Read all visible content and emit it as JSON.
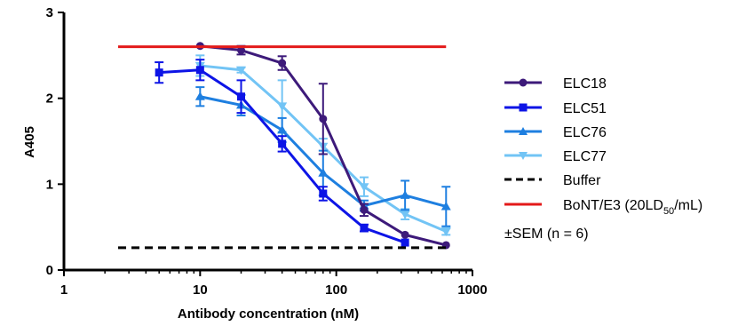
{
  "chart_data": {
    "type": "line",
    "xlabel": "Antibody concentration (nM)",
    "ylabel": "A405",
    "xscale": "log",
    "xlim": [
      1,
      1000
    ],
    "ylim": [
      0,
      3
    ],
    "xticks": [
      1,
      10,
      100,
      1000
    ],
    "xtick_labels": [
      "1",
      "10",
      "100",
      "1000"
    ],
    "yticks": [
      0,
      1,
      2,
      3
    ],
    "ytick_labels": [
      "0",
      "1",
      "2",
      "3"
    ],
    "legend_position": "right",
    "series": [
      {
        "name": "ELC18",
        "color": "#3d1a7a",
        "marker": "circle",
        "x": [
          10,
          20,
          40,
          80,
          160,
          320,
          640
        ],
        "y": [
          2.61,
          2.56,
          2.41,
          1.76,
          0.7,
          0.41,
          0.29
        ],
        "err": [
          0.0,
          0.05,
          0.08,
          0.41,
          0.07,
          0.0,
          0.0
        ]
      },
      {
        "name": "ELC51",
        "color": "#0d14e6",
        "marker": "square",
        "x": [
          5,
          10,
          20,
          40,
          80,
          160,
          320
        ],
        "y": [
          2.3,
          2.33,
          2.02,
          1.47,
          0.89,
          0.49,
          0.32
        ],
        "err": [
          0.12,
          0.12,
          0.19,
          0.09,
          0.08,
          0.04,
          0.0
        ]
      },
      {
        "name": "ELC76",
        "color": "#1e7fe0",
        "marker": "triangle-up",
        "x": [
          10,
          20,
          40,
          80,
          160,
          320,
          640
        ],
        "y": [
          2.02,
          1.92,
          1.63,
          1.13,
          0.75,
          0.87,
          0.74
        ],
        "err": [
          0.11,
          0.12,
          0.14,
          0.26,
          0.06,
          0.17,
          0.23
        ]
      },
      {
        "name": "ELC77",
        "color": "#72c4f5",
        "marker": "triangle-down",
        "x": [
          10,
          20,
          40,
          80,
          160,
          320,
          640
        ],
        "y": [
          2.38,
          2.33,
          1.91,
          1.44,
          0.97,
          0.65,
          0.45
        ],
        "err": [
          0.12,
          0.03,
          0.3,
          0.09,
          0.11,
          0.06,
          0.04
        ]
      },
      {
        "name": "Buffer",
        "color": "#000000",
        "style": "dashed",
        "x": [
          2.5,
          640
        ],
        "y": [
          0.26,
          0.26
        ]
      },
      {
        "name": "BoNT/E3 (20LD50/mL)",
        "color": "#e31a1a",
        "style": "solid",
        "x": [
          2.5,
          640
        ],
        "y": [
          2.6,
          2.6
        ]
      }
    ],
    "legend_labels": {
      "elc18": "ELC18",
      "elc51": "ELC51",
      "elc76": "ELC76",
      "elc77": "ELC77",
      "buffer": "Buffer",
      "bont_prefix": "BoNT/E3 (20LD",
      "bont_sub": "50",
      "bont_suffix": "/mL)"
    },
    "note": "±SEM (n = 6)"
  }
}
